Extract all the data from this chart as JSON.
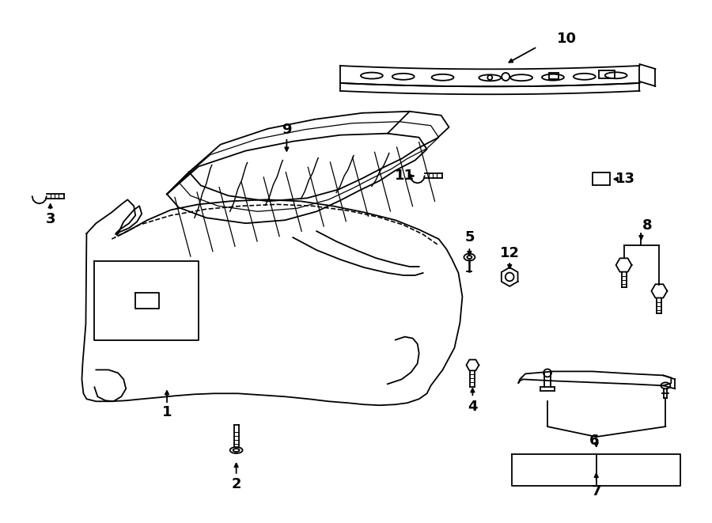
{
  "background_color": "#ffffff",
  "line_color": "#000000",
  "label_fontsize": 13,
  "lw": 1.3
}
